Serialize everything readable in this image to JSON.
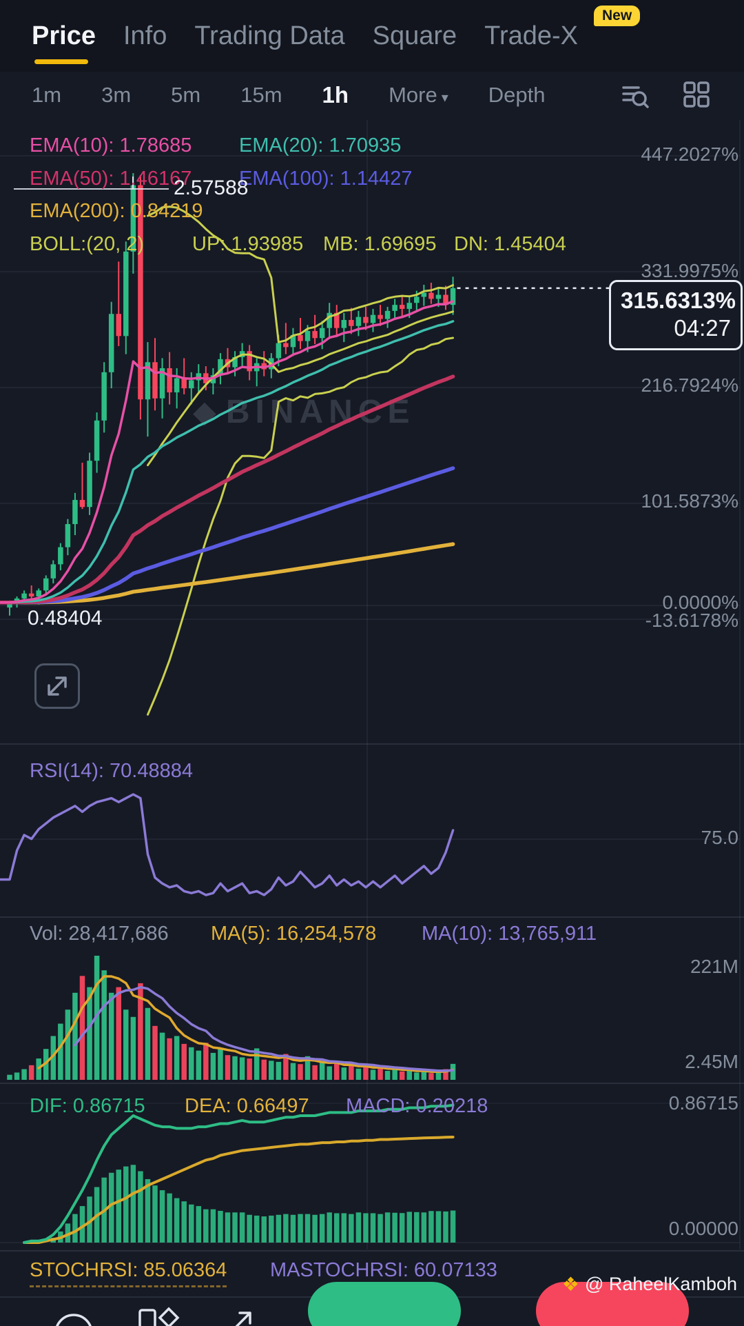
{
  "nav": {
    "items": [
      "Price",
      "Info",
      "Trading Data",
      "Square",
      "Trade-X"
    ],
    "new_badge": "New"
  },
  "toolbar": {
    "timeframes": [
      "1m",
      "3m",
      "5m",
      "15m",
      "1h"
    ],
    "more": "More",
    "depth": "Depth"
  },
  "legend": {
    "ema10": "EMA(10): 1.78685",
    "ema20": "EMA(20): 1.70935",
    "ema50": "EMA(50): 1.46167",
    "ema100": "EMA(100): 1.14427",
    "ema200": "EMA(200): 0.84219",
    "boll_title": "BOLL:(20, 2)",
    "boll_up": "UP: 1.93985",
    "boll_mb": "MB: 1.69695",
    "boll_dn": "DN: 1.45404"
  },
  "axis_labels": [
    "447.2027%",
    "331.9975%",
    "216.7924%",
    "101.5873%",
    "0.0000%",
    "-13.6178%"
  ],
  "price_marker": {
    "pct": "315.6313%",
    "time": "04:27"
  },
  "chart_labels": {
    "peak": "2.57588",
    "base": "0.48404"
  },
  "rsi_pane": {
    "label": "RSI(14): 70.48884",
    "axis": "75.0"
  },
  "volume_pane": {
    "vol": "Vol: 28,417,686",
    "ma5": "MA(5): 16,254,578",
    "ma10": "MA(10): 13,765,911",
    "axis_top": "221M",
    "axis_bottom": "2.45M"
  },
  "macd_pane": {
    "dif": "DIF: 0.86715",
    "dea": "DEA: 0.66497",
    "macd": "MACD: 0.20218",
    "axis_top": "0.86715",
    "axis_bottom": "0.00000"
  },
  "stoch_pane": {
    "stochrsi": "STOCHRSI: 85.06364",
    "mastochrsi": "MASTOCHRSI: 60.07133"
  },
  "watermarks": {
    "brand": "BINANCE",
    "credit": "@ RaheelKamboh"
  },
  "icons": {
    "chevron_down": "▾",
    "diamond": "◆",
    "credit_diamond": "❖"
  },
  "colors": {
    "up": "#2ebd85",
    "down": "#f6465d",
    "ema10": "#e750a5",
    "ema20": "#3fbfae",
    "ema50": "#c2355f",
    "ema100": "#5b5ce2",
    "ema200": "#e2b23a",
    "boll": "#c9d04f",
    "rsi": "#8b7ad6",
    "ma5": "#e0a82e",
    "ma10": "#8b7ad6",
    "dif": "#2ebd85",
    "dea": "#d9a92c",
    "accent": "#f0b90b"
  },
  "chart_data": {
    "type": "candlestick",
    "title": "Price chart with EMA/BOLL overlays, RSI, Volume, MACD, STOCHRSI panes",
    "y_axis_pcts": [
      447.2027,
      331.9975,
      216.7924,
      101.5873,
      0.0,
      -13.6178
    ],
    "current_pct": 315.6313,
    "candles_pct": [
      [
        -2,
        5,
        -10,
        3
      ],
      [
        3,
        9,
        -2,
        7
      ],
      [
        7,
        15,
        3,
        12
      ],
      [
        12,
        20,
        6,
        9
      ],
      [
        9,
        17,
        1,
        15
      ],
      [
        15,
        30,
        11,
        27
      ],
      [
        27,
        45,
        22,
        41
      ],
      [
        41,
        62,
        35,
        58
      ],
      [
        58,
        86,
        50,
        81
      ],
      [
        81,
        112,
        70,
        105
      ],
      [
        105,
        142,
        96,
        98
      ],
      [
        98,
        152,
        90,
        144
      ],
      [
        144,
        192,
        132,
        184
      ],
      [
        184,
        242,
        172,
        232
      ],
      [
        232,
        302,
        216,
        290
      ],
      [
        290,
        342,
        258,
        268
      ],
      [
        268,
        362,
        250,
        352
      ],
      [
        352,
        430,
        330,
        418
      ],
      [
        418,
        428,
        185,
        205
      ],
      [
        205,
        262,
        168,
        242
      ],
      [
        242,
        266,
        194,
        206
      ],
      [
        206,
        246,
        186,
        236
      ],
      [
        236,
        252,
        200,
        212
      ],
      [
        212,
        236,
        196,
        226
      ],
      [
        226,
        246,
        210,
        216
      ],
      [
        216,
        232,
        200,
        224
      ],
      [
        224,
        240,
        212,
        231
      ],
      [
        231,
        238,
        214,
        221
      ],
      [
        221,
        236,
        210,
        229
      ],
      [
        229,
        251,
        220,
        245
      ],
      [
        245,
        256,
        230,
        237
      ],
      [
        237,
        253,
        228,
        247
      ],
      [
        247,
        261,
        238,
        253
      ],
      [
        253,
        259,
        224,
        233
      ],
      [
        233,
        246,
        218,
        241
      ],
      [
        241,
        253,
        228,
        235
      ],
      [
        235,
        251,
        226,
        246
      ],
      [
        246,
        269,
        238,
        261
      ],
      [
        261,
        281,
        250,
        257
      ],
      [
        257,
        276,
        248,
        269
      ],
      [
        269,
        286,
        255,
        263
      ],
      [
        263,
        279,
        252,
        273
      ],
      [
        273,
        289,
        260,
        266
      ],
      [
        266,
        283,
        255,
        276
      ],
      [
        276,
        301,
        265,
        291
      ],
      [
        291,
        299,
        267,
        276
      ],
      [
        276,
        291,
        262,
        284
      ],
      [
        284,
        296,
        270,
        278
      ],
      [
        278,
        293,
        268,
        287
      ],
      [
        287,
        297,
        274,
        281
      ],
      [
        281,
        295,
        272,
        289
      ],
      [
        289,
        299,
        278,
        285
      ],
      [
        285,
        297,
        276,
        293
      ],
      [
        293,
        305,
        284,
        299
      ],
      [
        299,
        309,
        288,
        295
      ],
      [
        295,
        307,
        286,
        301
      ],
      [
        301,
        313,
        292,
        307
      ],
      [
        307,
        319,
        298,
        311
      ],
      [
        311,
        321,
        300,
        305
      ],
      [
        305,
        316,
        297,
        309
      ],
      [
        309,
        318,
        294,
        299
      ],
      [
        299,
        327,
        289,
        315.63
      ]
    ],
    "volumes_m": [
      9,
      13,
      19,
      26,
      38,
      55,
      78,
      100,
      125,
      155,
      185,
      165,
      221,
      195,
      155,
      165,
      125,
      112,
      172,
      128,
      96,
      84,
      74,
      78,
      64,
      58,
      52,
      66,
      48,
      56,
      44,
      42,
      40,
      38,
      56,
      36,
      34,
      32,
      46,
      30,
      28,
      42,
      26,
      32,
      24,
      30,
      22,
      26,
      20,
      24,
      18,
      22,
      16,
      19,
      15,
      17,
      13,
      16,
      12,
      14,
      19,
      28.4
    ],
    "rsi14": [
      45,
      60,
      68,
      66,
      71,
      74,
      77,
      79,
      81,
      83,
      80,
      83,
      85,
      86,
      87,
      85,
      87,
      89,
      87,
      58,
      46,
      43,
      41,
      42,
      39,
      38,
      39,
      37,
      38,
      43,
      39,
      41,
      43,
      38,
      39,
      37,
      40,
      46,
      42,
      44,
      49,
      45,
      41,
      43,
      47,
      42,
      45,
      42,
      44,
      41,
      44,
      41,
      44,
      47,
      43,
      46,
      49,
      52,
      48,
      51,
      59,
      70.49
    ],
    "macd_dif": [
      0,
      0,
      0,
      0.01,
      0.01,
      0.02,
      0.05,
      0.1,
      0.17,
      0.25,
      0.33,
      0.42,
      0.52,
      0.61,
      0.68,
      0.72,
      0.76,
      0.8,
      0.78,
      0.76,
      0.74,
      0.73,
      0.73,
      0.72,
      0.72,
      0.72,
      0.73,
      0.73,
      0.74,
      0.75,
      0.75,
      0.76,
      0.77,
      0.76,
      0.76,
      0.76,
      0.77,
      0.78,
      0.79,
      0.79,
      0.8,
      0.8,
      0.8,
      0.81,
      0.82,
      0.82,
      0.82,
      0.82,
      0.83,
      0.83,
      0.83,
      0.83,
      0.84,
      0.84,
      0.84,
      0.85,
      0.85,
      0.85,
      0.86,
      0.86,
      0.86,
      0.867
    ],
    "macd_dea": [
      0,
      0,
      0,
      0,
      0,
      0.01,
      0.02,
      0.03,
      0.05,
      0.07,
      0.1,
      0.13,
      0.17,
      0.2,
      0.24,
      0.26,
      0.28,
      0.31,
      0.33,
      0.36,
      0.38,
      0.4,
      0.42,
      0.44,
      0.46,
      0.48,
      0.5,
      0.52,
      0.53,
      0.55,
      0.56,
      0.57,
      0.58,
      0.585,
      0.59,
      0.595,
      0.6,
      0.605,
      0.61,
      0.615,
      0.62,
      0.62,
      0.625,
      0.63,
      0.63,
      0.635,
      0.635,
      0.64,
      0.64,
      0.645,
      0.645,
      0.65,
      0.65,
      0.652,
      0.654,
      0.656,
      0.658,
      0.66,
      0.661,
      0.662,
      0.664,
      0.665
    ],
    "indicator_values": {
      "ema10": 1.78685,
      "ema20": 1.70935,
      "ema50": 1.46167,
      "ema100": 1.14427,
      "ema200": 0.84219,
      "boll_up": 1.93985,
      "boll_mb": 1.69695,
      "boll_dn": 1.45404,
      "rsi14": 70.48884,
      "vol": 28417686,
      "vol_ma5": 16254578,
      "vol_ma10": 13765911,
      "dif": 0.86715,
      "dea": 0.66497,
      "macd": 0.20218,
      "stochrsi": 85.06364,
      "mastochrsi": 60.07133,
      "high_price": 2.57588,
      "base_price": 0.48404,
      "current_pct": 315.6313,
      "current_time": "04:27"
    }
  }
}
